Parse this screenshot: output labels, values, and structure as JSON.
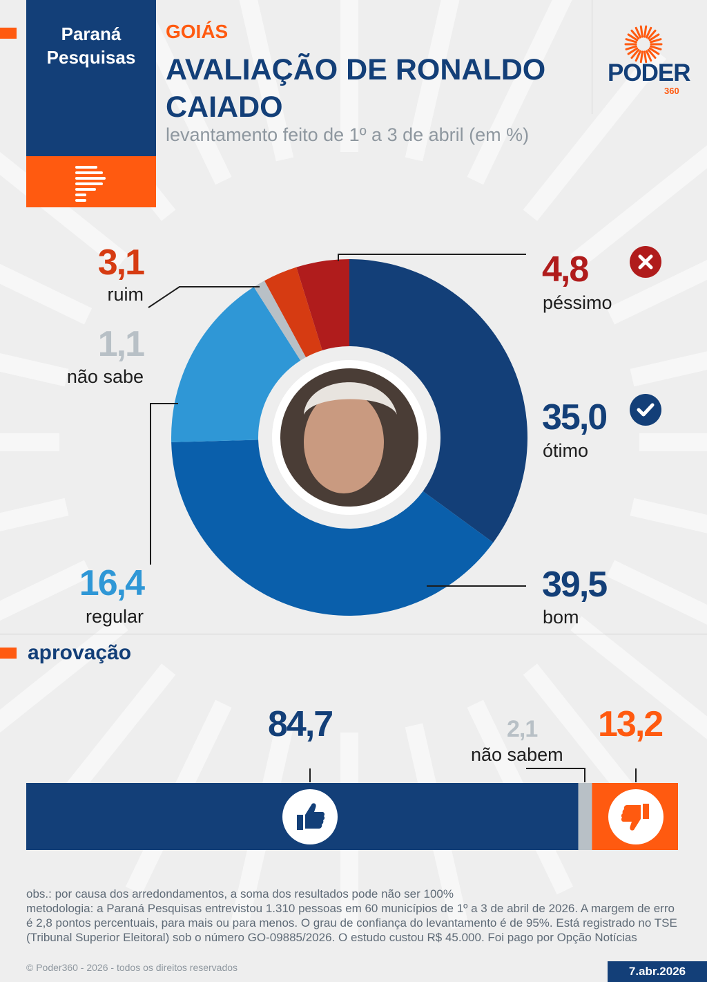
{
  "header": {
    "pollster_line1": "Paraná",
    "pollster_line2": "Pesquisas",
    "state": "GOIÁS",
    "title_line1": "AVALIAÇÃO DE RONALDO",
    "title_line2": "CAIADO",
    "subtitle": "levantamento feito de 1º a 3 de abril (em %)",
    "brand": "PODER",
    "brand_suffix": "360"
  },
  "colors": {
    "navy": "#133f78",
    "orange": "#ff5a10",
    "otimo": "#133f78",
    "bom": "#0a5fab",
    "regular": "#2f97d6",
    "nao_sabe": "#b8c0c6",
    "ruim": "#d63b12",
    "pessimo": "#b01c1c"
  },
  "chart_data": [
    {
      "type": "pie",
      "slices": [
        {
          "label": "ótimo",
          "value": 35.0,
          "display": "35,0",
          "color": "#133f78"
        },
        {
          "label": "bom",
          "value": 39.5,
          "display": "39,5",
          "color": "#0a5fab"
        },
        {
          "label": "regular",
          "value": 16.4,
          "display": "16,4",
          "color": "#2f97d6"
        },
        {
          "label": "não sabe",
          "value": 1.1,
          "display": "1,1",
          "color": "#b8c0c6"
        },
        {
          "label": "ruim",
          "value": 3.1,
          "display": "3,1",
          "color": "#d63b12"
        },
        {
          "label": "péssimo",
          "value": 4.8,
          "display": "4,8",
          "color": "#b01c1c"
        }
      ]
    },
    {
      "type": "bar",
      "title": "aprovação",
      "segments": [
        {
          "label": "",
          "value": 84.7,
          "display": "84,7",
          "color": "#133f78",
          "icon": "thumbs-up-icon"
        },
        {
          "label": "não sabem",
          "value": 2.1,
          "display": "2,1",
          "color": "#b8c0c6"
        },
        {
          "label": "",
          "value": 13.2,
          "display": "13,2",
          "color": "#ff5a10",
          "icon": "thumbs-down-icon"
        }
      ]
    }
  ],
  "notes": {
    "obs": "obs.: por causa dos arredondamentos, a soma dos resultados pode não ser 100%",
    "methodology": "metodologia: a Paraná Pesquisas entrevistou 1.310 pessoas em 60 municípios de 1º a 3 de abril de 2026. A margem de erro é 2,8 pontos percentuais, para mais ou para menos. O grau de confiança do levantamento é de 95%. Está registrado no TSE (Tribunal Superior Eleitoral) sob o número GO-09885/2026. O estudo custou R$ 45.000. Foi pago por Opção Notícias",
    "copyright": "© Poder360 - 2026 - todos os direitos reservados",
    "date": "7.abr.2026"
  }
}
